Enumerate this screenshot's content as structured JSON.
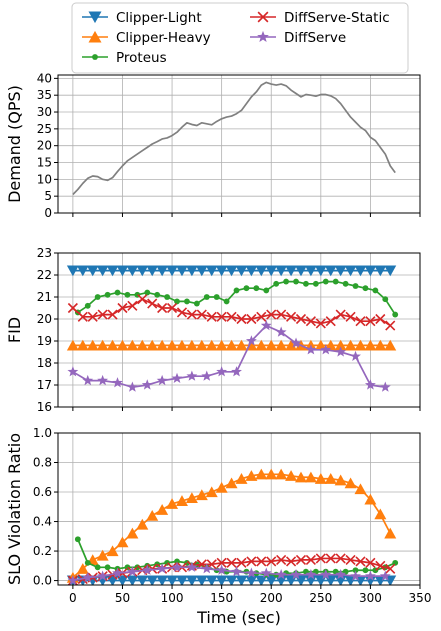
{
  "legend": {
    "entries": [
      {
        "name": "Clipper-Light",
        "color": "#1f77b4",
        "marker": "triangle-down"
      },
      {
        "name": "Clipper-Heavy",
        "color": "#ff7f0e",
        "marker": "triangle-up"
      },
      {
        "name": "Proteus",
        "color": "#2ca02c",
        "marker": "circle"
      },
      {
        "name": "DiffServe-Static",
        "color": "#d62728",
        "marker": "x"
      },
      {
        "name": "DiffServe",
        "color": "#9467bd",
        "marker": "star"
      }
    ]
  },
  "chart_data": [
    {
      "type": "line",
      "ylabel": "Demand (QPS)",
      "xlabel": "",
      "xlim": [
        -15,
        350
      ],
      "ylim": [
        0,
        41
      ],
      "xticks": [
        0,
        50,
        100,
        150,
        200,
        250,
        300,
        350
      ],
      "yticks": [
        0,
        5,
        10,
        15,
        20,
        25,
        30,
        35,
        40
      ],
      "grid": true,
      "series": [
        {
          "color": "#808080",
          "x": [
            0,
            5,
            10,
            15,
            20,
            25,
            30,
            35,
            40,
            45,
            50,
            55,
            60,
            65,
            70,
            75,
            80,
            85,
            90,
            95,
            100,
            105,
            110,
            115,
            120,
            125,
            130,
            135,
            140,
            145,
            150,
            155,
            160,
            165,
            170,
            175,
            180,
            185,
            190,
            195,
            200,
            205,
            210,
            215,
            220,
            225,
            230,
            235,
            240,
            245,
            250,
            255,
            260,
            265,
            270,
            275,
            280,
            285,
            290,
            295,
            300,
            305,
            310,
            315,
            320,
            325
          ],
          "y": [
            5.5,
            7,
            8.8,
            10.3,
            11,
            10.8,
            10,
            9.7,
            10.5,
            12.3,
            14,
            15.5,
            16.5,
            17.5,
            18.5,
            19.5,
            20.5,
            21.2,
            22,
            22.3,
            23,
            24,
            25.5,
            26.8,
            26.3,
            26,
            26.8,
            26.5,
            26.2,
            27.2,
            28,
            28.5,
            28.8,
            29.5,
            30.5,
            32.5,
            34.5,
            36,
            38,
            38.8,
            38.3,
            38,
            38.3,
            37.8,
            36.5,
            35.5,
            34.5,
            35.2,
            35,
            34.7,
            35.2,
            35.2,
            34.8,
            34,
            32.5,
            30.5,
            28.5,
            27,
            25.5,
            24.5,
            22.5,
            21.5,
            19.5,
            17.5,
            14,
            12
          ]
        }
      ]
    },
    {
      "type": "line",
      "ylabel": "FID",
      "xlabel": "",
      "xlim": [
        -15,
        350
      ],
      "ylim": [
        16,
        23
      ],
      "xticks": [
        0,
        50,
        100,
        150,
        200,
        250,
        300,
        350
      ],
      "yticks": [
        16,
        17,
        18,
        19,
        20,
        21,
        22,
        23
      ],
      "grid": true,
      "series": [
        {
          "name": "Clipper-Light",
          "color": "#1f77b4",
          "marker": "triangle-down",
          "x": [
            0,
            10,
            20,
            30,
            40,
            50,
            60,
            70,
            80,
            90,
            100,
            110,
            120,
            130,
            140,
            150,
            160,
            170,
            180,
            190,
            200,
            210,
            220,
            230,
            240,
            250,
            260,
            270,
            280,
            290,
            300,
            310,
            320
          ],
          "y": [
            22.2,
            22.2,
            22.2,
            22.2,
            22.2,
            22.2,
            22.2,
            22.2,
            22.2,
            22.2,
            22.2,
            22.2,
            22.2,
            22.2,
            22.2,
            22.2,
            22.2,
            22.2,
            22.2,
            22.2,
            22.2,
            22.2,
            22.2,
            22.2,
            22.2,
            22.2,
            22.2,
            22.2,
            22.2,
            22.2,
            22.2,
            22.2,
            22.2
          ]
        },
        {
          "name": "Clipper-Heavy",
          "color": "#ff7f0e",
          "marker": "triangle-up",
          "x": [
            0,
            10,
            20,
            30,
            40,
            50,
            60,
            70,
            80,
            90,
            100,
            110,
            120,
            130,
            140,
            150,
            160,
            170,
            180,
            190,
            200,
            210,
            220,
            230,
            240,
            250,
            260,
            270,
            280,
            290,
            300,
            310,
            320
          ],
          "y": [
            18.8,
            18.8,
            18.8,
            18.8,
            18.8,
            18.8,
            18.8,
            18.8,
            18.8,
            18.8,
            18.8,
            18.8,
            18.8,
            18.8,
            18.8,
            18.8,
            18.8,
            18.8,
            18.8,
            18.8,
            18.8,
            18.8,
            18.8,
            18.8,
            18.8,
            18.8,
            18.8,
            18.8,
            18.8,
            18.8,
            18.8,
            18.8,
            18.8
          ]
        },
        {
          "name": "Proteus",
          "color": "#2ca02c",
          "marker": "circle",
          "x": [
            5,
            15,
            25,
            35,
            45,
            55,
            65,
            75,
            85,
            95,
            105,
            115,
            125,
            135,
            145,
            155,
            165,
            175,
            185,
            195,
            205,
            215,
            225,
            235,
            245,
            255,
            265,
            275,
            285,
            295,
            305,
            315,
            325
          ],
          "y": [
            20.3,
            20.6,
            21.0,
            21.1,
            21.2,
            21.1,
            21.1,
            21.2,
            21.1,
            21.0,
            20.8,
            20.8,
            20.7,
            21.0,
            21.0,
            20.8,
            21.3,
            21.4,
            21.4,
            21.3,
            21.6,
            21.7,
            21.7,
            21.6,
            21.6,
            21.7,
            21.7,
            21.6,
            21.5,
            21.4,
            21.3,
            20.9,
            20.2
          ]
        },
        {
          "name": "DiffServe-Static",
          "color": "#d62728",
          "marker": "x",
          "x": [
            0,
            10,
            20,
            30,
            40,
            50,
            60,
            70,
            80,
            90,
            100,
            110,
            120,
            130,
            140,
            150,
            160,
            170,
            180,
            190,
            200,
            210,
            220,
            230,
            240,
            250,
            260,
            270,
            280,
            290,
            300,
            310,
            320
          ],
          "y": [
            20.5,
            20.1,
            20.1,
            20.2,
            20.2,
            20.5,
            20.6,
            20.9,
            20.7,
            20.5,
            20.5,
            20.3,
            20.2,
            20.2,
            20.1,
            20.1,
            20.1,
            20.0,
            20.0,
            20.1,
            20.2,
            20.2,
            20.1,
            20.0,
            19.9,
            19.8,
            19.9,
            20.2,
            20.1,
            19.9,
            19.9,
            20.0,
            19.7
          ]
        },
        {
          "name": "DiffServe",
          "color": "#9467bd",
          "marker": "star",
          "x": [
            0,
            15,
            30,
            45,
            60,
            75,
            90,
            105,
            120,
            135,
            150,
            165,
            180,
            195,
            210,
            225,
            240,
            255,
            270,
            285,
            300,
            315
          ],
          "y": [
            17.6,
            17.2,
            17.2,
            17.1,
            16.9,
            17.0,
            17.2,
            17.3,
            17.4,
            17.4,
            17.6,
            17.6,
            19.0,
            19.7,
            19.4,
            18.9,
            18.6,
            18.6,
            18.5,
            18.3,
            17.0,
            16.9
          ]
        }
      ]
    },
    {
      "type": "line",
      "ylabel": "SLO Violation Ratio",
      "xlabel": "Time (sec)",
      "xlim": [
        -15,
        350
      ],
      "ylim": [
        -0.03,
        1.0
      ],
      "xticks": [
        0,
        50,
        100,
        150,
        200,
        250,
        300,
        350
      ],
      "yticks": [
        0.0,
        0.2,
        0.4,
        0.6,
        0.8,
        1.0
      ],
      "grid": true,
      "series": [
        {
          "name": "Clipper-Light",
          "color": "#1f77b4",
          "marker": "triangle-down",
          "x": [
            0,
            10,
            20,
            30,
            40,
            50,
            60,
            70,
            80,
            90,
            100,
            110,
            120,
            130,
            140,
            150,
            160,
            170,
            180,
            190,
            200,
            210,
            220,
            230,
            240,
            250,
            260,
            270,
            280,
            290,
            300,
            310,
            320
          ],
          "y": [
            0,
            0,
            0,
            0,
            0,
            0,
            0,
            0,
            0,
            0,
            0,
            0,
            0,
            0,
            0,
            0,
            0,
            0,
            0,
            0,
            0,
            0,
            0,
            0,
            0,
            0,
            0,
            0,
            0,
            0,
            0,
            0,
            0
          ]
        },
        {
          "name": "Clipper-Heavy",
          "color": "#ff7f0e",
          "marker": "triangle-up",
          "x": [
            0,
            10,
            20,
            30,
            40,
            50,
            60,
            70,
            80,
            90,
            100,
            110,
            120,
            130,
            140,
            150,
            160,
            170,
            180,
            190,
            200,
            210,
            220,
            230,
            240,
            250,
            260,
            270,
            280,
            290,
            300,
            310,
            320
          ],
          "y": [
            0.02,
            0.08,
            0.14,
            0.17,
            0.2,
            0.26,
            0.32,
            0.38,
            0.44,
            0.48,
            0.52,
            0.54,
            0.56,
            0.58,
            0.6,
            0.63,
            0.66,
            0.69,
            0.71,
            0.72,
            0.72,
            0.72,
            0.71,
            0.7,
            0.7,
            0.69,
            0.69,
            0.68,
            0.66,
            0.62,
            0.55,
            0.45,
            0.32
          ]
        },
        {
          "name": "Proteus",
          "color": "#2ca02c",
          "marker": "circle",
          "x": [
            5,
            15,
            25,
            35,
            45,
            55,
            65,
            75,
            85,
            95,
            105,
            115,
            125,
            135,
            145,
            155,
            165,
            175,
            185,
            195,
            205,
            215,
            225,
            235,
            245,
            255,
            265,
            275,
            285,
            295,
            305,
            315,
            325
          ],
          "y": [
            0.28,
            0.12,
            0.09,
            0.09,
            0.08,
            0.09,
            0.09,
            0.1,
            0.11,
            0.12,
            0.13,
            0.12,
            0.11,
            0.09,
            0.07,
            0.06,
            0.06,
            0.06,
            0.05,
            0.04,
            0.04,
            0.05,
            0.05,
            0.06,
            0.06,
            0.06,
            0.06,
            0.06,
            0.07,
            0.07,
            0.07,
            0.09,
            0.12
          ]
        },
        {
          "name": "DiffServe-Static",
          "color": "#d62728",
          "marker": "x",
          "x": [
            0,
            10,
            20,
            30,
            40,
            50,
            60,
            70,
            80,
            90,
            100,
            110,
            120,
            130,
            140,
            150,
            160,
            170,
            180,
            190,
            200,
            210,
            220,
            230,
            240,
            250,
            260,
            270,
            280,
            290,
            300,
            310,
            320
          ],
          "y": [
            0.0,
            0.01,
            0.02,
            0.03,
            0.04,
            0.05,
            0.06,
            0.07,
            0.08,
            0.08,
            0.09,
            0.09,
            0.1,
            0.11,
            0.11,
            0.12,
            0.12,
            0.12,
            0.13,
            0.13,
            0.13,
            0.14,
            0.13,
            0.14,
            0.14,
            0.15,
            0.15,
            0.15,
            0.14,
            0.13,
            0.12,
            0.1,
            0.08
          ]
        },
        {
          "name": "DiffServe",
          "color": "#9467bd",
          "marker": "star",
          "x": [
            0,
            15,
            30,
            45,
            60,
            75,
            90,
            105,
            120,
            135,
            150,
            165,
            180,
            195,
            210,
            225,
            240,
            255,
            270,
            285,
            300,
            315
          ],
          "y": [
            0.0,
            0.02,
            0.03,
            0.05,
            0.06,
            0.07,
            0.08,
            0.09,
            0.09,
            0.08,
            0.07,
            0.06,
            0.05,
            0.05,
            0.04,
            0.04,
            0.04,
            0.04,
            0.04,
            0.03,
            0.03,
            0.03
          ]
        }
      ]
    }
  ]
}
